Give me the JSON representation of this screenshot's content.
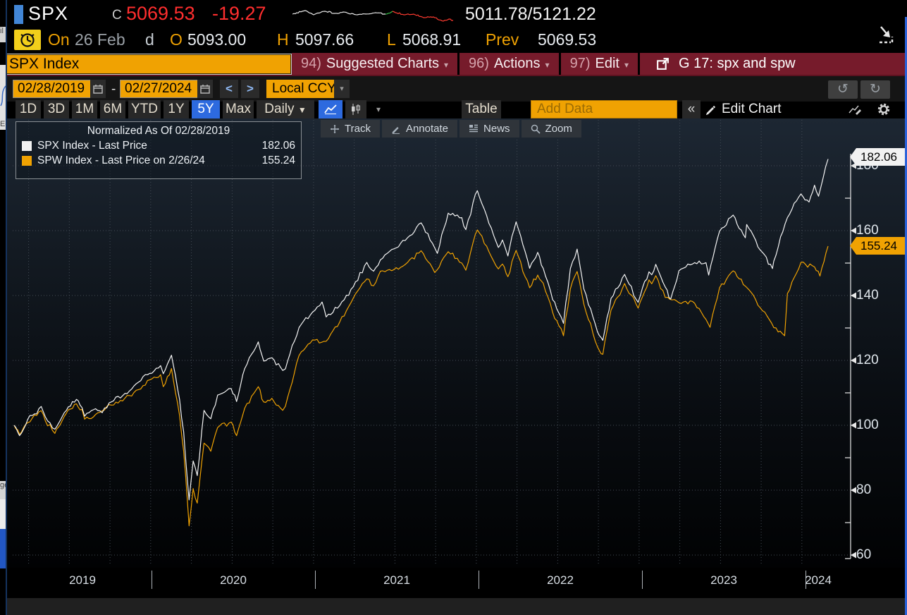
{
  "topbar": {
    "ticker": "SPX",
    "close_label": "C",
    "last_price": "5069.53",
    "change": "-19.27",
    "range": "5011.78/5121.22"
  },
  "session": {
    "on_label": "On",
    "date": "26 Feb",
    "flag": "d",
    "open_label": "O",
    "open": "5093.00",
    "high_label": "H",
    "high": "5097.66",
    "low_label": "L",
    "low": "5068.91",
    "prev_label": "Prev",
    "prev": "5069.53"
  },
  "menu": {
    "security_input": "SPX Index",
    "items": [
      {
        "num": "94)",
        "name": "Suggested Charts"
      },
      {
        "num": "96)",
        "name": "Actions"
      },
      {
        "num": "97)",
        "name": "Edit"
      }
    ],
    "chart_slot": "G 17: spx and spw"
  },
  "controls": {
    "date_from": "02/28/2019",
    "date_to": "02/27/2024",
    "range_dash": "-",
    "currency": "Local CCY",
    "periods": [
      "1D",
      "3D",
      "1M",
      "6M",
      "YTD",
      "1Y",
      "5Y",
      "Max"
    ],
    "active_period": "5Y",
    "frequency": "Daily",
    "table_label": "Table",
    "add_data_placeholder": "Add Data",
    "edit_chart_label": "Edit Chart"
  },
  "glyphs": {
    "caret_down": "▾",
    "freq_caret": "▼",
    "collapse": "«",
    "undo": "↺",
    "redo": "↻",
    "prev": "<",
    "next": ">"
  },
  "chart_toolbar": {
    "track": "Track",
    "annotate": "Annotate",
    "news": "News",
    "zoom": "Zoom"
  },
  "legend": {
    "title": "Normalized As Of 02/28/2019",
    "series": [
      {
        "label": "SPX Index - Last Price",
        "value": "182.06",
        "swatch": "#f2f2f2"
      },
      {
        "label": "SPW Index - Last Price on 2/26/24",
        "value": "155.24",
        "swatch": "#f0a202"
      }
    ]
  },
  "axis": {
    "y_labels": [
      "180",
      "160",
      "140",
      "120",
      "100",
      "80",
      "60"
    ],
    "x_labels": [
      "2019",
      "2020",
      "2021",
      "2022",
      "2023",
      "2024"
    ],
    "badges": [
      {
        "text": "182.06",
        "bg": "#f2f2f2"
      },
      {
        "text": "155.24",
        "bg": "#f0a202"
      }
    ]
  },
  "chart_data": {
    "type": "line",
    "title": "Normalized As Of 02/28/2019",
    "x_unit": "months since 2019-02-28",
    "x_range": [
      "02/28/2019",
      "02/27/2024"
    ],
    "ylim": [
      60,
      190
    ],
    "grid": "dotted",
    "legend_position": "top-left",
    "series": [
      {
        "name": "SPW Index - Last Price on 2/26/24",
        "color": "#f0a202",
        "last": 155.24,
        "anchors": [
          [
            0,
            100
          ],
          [
            0.4,
            97.2
          ],
          [
            1,
            100.8
          ],
          [
            2,
            104.5
          ],
          [
            2.3,
            101.4
          ],
          [
            3,
            97.5
          ],
          [
            3.4,
            100.2
          ],
          [
            4,
            104.8
          ],
          [
            4.6,
            106.6
          ],
          [
            5,
            104.9
          ],
          [
            5.2,
            101.9
          ],
          [
            6,
            103.3
          ],
          [
            7,
            106.4
          ],
          [
            8,
            107.5
          ],
          [
            9,
            110.8
          ],
          [
            10,
            114.0
          ],
          [
            10.8,
            115.6
          ],
          [
            11,
            111.9
          ],
          [
            11.6,
            117.5
          ],
          [
            12.2,
            103.0
          ],
          [
            12.5,
            92.0
          ],
          [
            12.9,
            69.0
          ],
          [
            13.2,
            80.5
          ],
          [
            13.5,
            76.0
          ],
          [
            14,
            94.5
          ],
          [
            14.5,
            92.0
          ],
          [
            15,
            99.3
          ],
          [
            16,
            101.0
          ],
          [
            16.4,
            96.8
          ],
          [
            17,
            105.3
          ],
          [
            18,
            111.9
          ],
          [
            18.4,
            107.2
          ],
          [
            19,
            108.3
          ],
          [
            19.8,
            104.6
          ],
          [
            20,
            105.9
          ],
          [
            21,
            121.5
          ],
          [
            22,
            126.3
          ],
          [
            23,
            125.9
          ],
          [
            24,
            131.8
          ],
          [
            25,
            139.2
          ],
          [
            26,
            145.1
          ],
          [
            26.5,
            143.0
          ],
          [
            27,
            147.5
          ],
          [
            28,
            148.0
          ],
          [
            29,
            150.2
          ],
          [
            30,
            153.8
          ],
          [
            31,
            147.1
          ],
          [
            32,
            153.5
          ],
          [
            33,
            150.0
          ],
          [
            33.3,
            147.8
          ],
          [
            34,
            158.9
          ],
          [
            34.15,
            160.2
          ],
          [
            35,
            153.5
          ],
          [
            35.7,
            148.2
          ],
          [
            36,
            149.7
          ],
          [
            36.4,
            145.8
          ],
          [
            37,
            153.9
          ],
          [
            38,
            142.4
          ],
          [
            38.6,
            146.3
          ],
          [
            39,
            143.8
          ],
          [
            39.7,
            134.8
          ],
          [
            40,
            132.3
          ],
          [
            40.5,
            127.6
          ],
          [
            41,
            142.0
          ],
          [
            41.5,
            147.4
          ],
          [
            42,
            137.3
          ],
          [
            43,
            124.2
          ],
          [
            43.4,
            121.9
          ],
          [
            44,
            135.5
          ],
          [
            45,
            143.7
          ],
          [
            46,
            136.1
          ],
          [
            46.8,
            144.8
          ],
          [
            47,
            143.6
          ],
          [
            47.3,
            146.1
          ],
          [
            48,
            139.4
          ],
          [
            49,
            137.8
          ],
          [
            50,
            138.2
          ],
          [
            51,
            132.6
          ],
          [
            51.3,
            130.2
          ],
          [
            52,
            142.4
          ],
          [
            53,
            147.6
          ],
          [
            53.9,
            142.9
          ],
          [
            54,
            142.5
          ],
          [
            55,
            136.2
          ],
          [
            56,
            130.1
          ],
          [
            56.8,
            127.6
          ],
          [
            57,
            140.6
          ],
          [
            58,
            150.2
          ],
          [
            59,
            148.8
          ],
          [
            59.4,
            146.0
          ],
          [
            60,
            155.24
          ]
        ]
      },
      {
        "name": "SPX Index - Last Price",
        "color": "#f5f5f5",
        "last": 182.06,
        "anchors": [
          [
            0,
            100
          ],
          [
            0.4,
            96.8
          ],
          [
            1,
            101.8
          ],
          [
            1.5,
            103.5
          ],
          [
            2,
            105.8
          ],
          [
            2.3,
            102.6
          ],
          [
            3,
            98.8
          ],
          [
            3.4,
            101.5
          ],
          [
            4,
            105.7
          ],
          [
            4.6,
            108.0
          ],
          [
            5,
            105.5
          ],
          [
            5.2,
            102.8
          ],
          [
            6,
            105.1
          ],
          [
            6.5,
            103.9
          ],
          [
            7,
            106.9
          ],
          [
            8,
            109.1
          ],
          [
            9,
            112.8
          ],
          [
            10,
            116.0
          ],
          [
            10.8,
            118.4
          ],
          [
            11,
            115.9
          ],
          [
            11.6,
            121.6
          ],
          [
            12.2,
            108.0
          ],
          [
            12.5,
            98.0
          ],
          [
            12.9,
            77.0
          ],
          [
            13.2,
            89.0
          ],
          [
            13.5,
            84.5
          ],
          [
            14,
            104.6
          ],
          [
            14.5,
            102.0
          ],
          [
            15,
            109.3
          ],
          [
            16,
            111.3
          ],
          [
            16.4,
            107.3
          ],
          [
            17,
            117.5
          ],
          [
            18,
            125.7
          ],
          [
            18.4,
            119.8
          ],
          [
            19,
            120.8
          ],
          [
            19.8,
            116.9
          ],
          [
            20,
            117.4
          ],
          [
            21,
            130.1
          ],
          [
            22,
            134.9
          ],
          [
            22.7,
            138.0
          ],
          [
            23,
            133.4
          ],
          [
            24,
            136.9
          ],
          [
            25,
            142.7
          ],
          [
            26,
            150.2
          ],
          [
            26.5,
            147.5
          ],
          [
            27,
            151.0
          ],
          [
            28,
            154.4
          ],
          [
            29,
            157.8
          ],
          [
            30,
            162.4
          ],
          [
            31,
            154.7
          ],
          [
            31.2,
            153.0
          ],
          [
            32,
            165.4
          ],
          [
            33,
            164.0
          ],
          [
            33.3,
            160.3
          ],
          [
            34,
            171.2
          ],
          [
            34.15,
            172.3
          ],
          [
            35,
            162.2
          ],
          [
            35.7,
            154.8
          ],
          [
            36,
            157.1
          ],
          [
            36.4,
            152.2
          ],
          [
            37,
            162.7
          ],
          [
            38,
            148.4
          ],
          [
            38.6,
            153.3
          ],
          [
            39,
            148.4
          ],
          [
            39.7,
            138.7
          ],
          [
            40,
            135.9
          ],
          [
            40.5,
            131.4
          ],
          [
            41,
            148.3
          ],
          [
            41.5,
            154.3
          ],
          [
            42,
            142.0
          ],
          [
            43,
            128.8
          ],
          [
            43.4,
            126.2
          ],
          [
            44,
            139.1
          ],
          [
            45,
            146.5
          ],
          [
            46,
            137.9
          ],
          [
            46.8,
            147.3
          ],
          [
            47,
            146.4
          ],
          [
            47.3,
            149.6
          ],
          [
            48,
            142.6
          ],
          [
            48.4,
            138.9
          ],
          [
            49,
            147.6
          ],
          [
            50,
            149.7
          ],
          [
            51,
            150.1
          ],
          [
            51.2,
            146.3
          ],
          [
            52,
            159.8
          ],
          [
            53,
            164.8
          ],
          [
            53.9,
            157.8
          ],
          [
            54,
            161.9
          ],
          [
            55,
            154.0
          ],
          [
            55.9,
            148.3
          ],
          [
            56,
            150.6
          ],
          [
            57,
            164.0
          ],
          [
            58,
            171.3
          ],
          [
            58.6,
            168.8
          ],
          [
            59,
            174.0
          ],
          [
            59.3,
            170.6
          ],
          [
            60,
            182.06
          ]
        ]
      }
    ]
  },
  "sparkline": {
    "segments": [
      {
        "color": "#e8e8e8",
        "points": [
          [
            0,
            14
          ],
          [
            18,
            9
          ],
          [
            30,
            15
          ],
          [
            46,
            10
          ],
          [
            60,
            13
          ],
          [
            72,
            11
          ],
          [
            92,
            15
          ],
          [
            118,
            12
          ],
          [
            132,
            14
          ]
        ]
      },
      {
        "color": "#35c048",
        "points": [
          [
            132,
            14
          ],
          [
            142,
            10
          ]
        ]
      },
      {
        "color": "#ff3b30",
        "points": [
          [
            142,
            10
          ],
          [
            158,
            15
          ],
          [
            172,
            14
          ],
          [
            186,
            19
          ],
          [
            200,
            18
          ],
          [
            214,
            24
          ],
          [
            222,
            21
          ],
          [
            228,
            23
          ]
        ]
      }
    ]
  }
}
